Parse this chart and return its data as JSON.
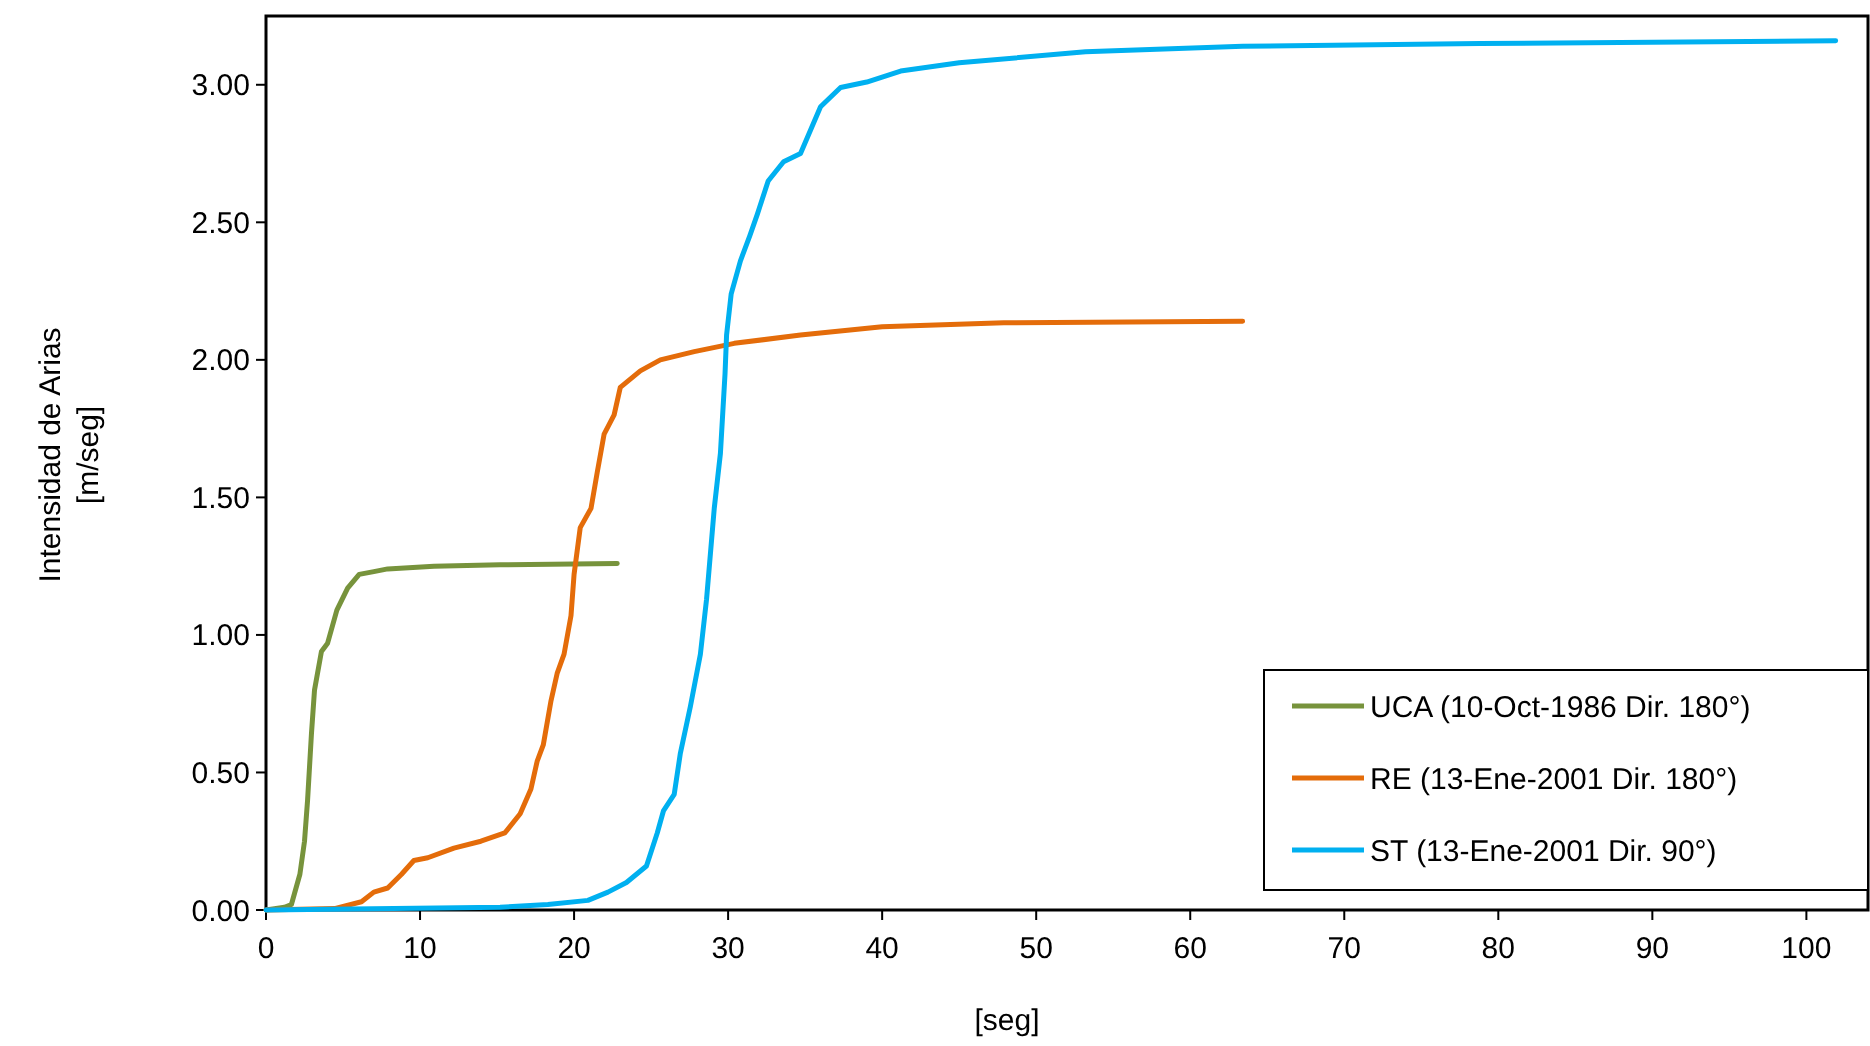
{
  "chart_data": {
    "type": "line",
    "xlabel": "[seg]",
    "ylabel": "Intensidad de Arias\n[m/seg]",
    "xlim": [
      0,
      104
    ],
    "xticks": [
      0,
      10,
      20,
      30,
      40,
      50,
      60,
      70,
      80,
      90,
      100
    ],
    "ylim": [
      0,
      3.25
    ],
    "yticks": [
      {
        "value": 0,
        "label": "0.00"
      },
      {
        "value": 0.5,
        "label": "0.50"
      },
      {
        "value": 1,
        "label": "1.00"
      },
      {
        "value": 1.5,
        "label": "1.50"
      },
      {
        "value": 2,
        "label": "2.00"
      },
      {
        "value": 2.5,
        "label": "2.50"
      },
      {
        "value": 3,
        "label": "3.00"
      }
    ],
    "grid": false,
    "legend": "bottom right",
    "marker": "none",
    "line_style": "solid",
    "series": [
      {
        "name": "UCA (10-Oct-1986 Dir. 180°)",
        "color": "#77933c",
        "x": [
          0,
          1.2,
          1.65,
          2.2,
          2.5,
          2.7,
          2.95,
          3.15,
          3.6,
          4.0,
          4.6,
          5.3,
          6.05,
          7.0,
          7.9,
          10.9,
          15.2,
          22.8
        ],
        "values": [
          0,
          0.01,
          0.02,
          0.13,
          0.25,
          0.4,
          0.64,
          0.8,
          0.94,
          0.97,
          1.09,
          1.17,
          1.22,
          1.23,
          1.24,
          1.25,
          1.255,
          1.26
        ]
      },
      {
        "name": "RE (13-Ene-2001 Dir. 180°)",
        "color": "#e46c0a",
        "x": [
          0,
          4.45,
          6.2,
          7.0,
          7.9,
          8.8,
          9.6,
          10.5,
          12.2,
          13.95,
          15.5,
          16.5,
          17.2,
          17.6,
          18.0,
          18.5,
          18.9,
          19.35,
          19.8,
          20.0,
          20.4,
          21.1,
          21.5,
          21.95,
          22.6,
          23.0,
          24.3,
          25.6,
          27.8,
          30.4,
          34.7,
          40,
          47.9,
          63.4
        ],
        "values": [
          0,
          0.005,
          0.03,
          0.065,
          0.08,
          0.13,
          0.18,
          0.19,
          0.225,
          0.25,
          0.28,
          0.35,
          0.44,
          0.54,
          0.6,
          0.76,
          0.86,
          0.93,
          1.07,
          1.22,
          1.39,
          1.46,
          1.59,
          1.73,
          1.8,
          1.9,
          1.96,
          2.0,
          2.03,
          2.06,
          2.09,
          2.12,
          2.135,
          2.14
        ]
      },
      {
        "name": "ST (13-Ene-2001 Dir. 90°)",
        "color": "#00b0f0",
        "x": [
          0,
          15.2,
          18.3,
          20.9,
          22.2,
          23.4,
          24.7,
          25.4,
          25.8,
          26.5,
          26.9,
          27.55,
          28.2,
          28.6,
          29.1,
          29.5,
          29.8,
          29.9,
          30.2,
          30.8,
          31.4,
          31.9,
          32.6,
          33.6,
          34.7,
          36,
          37.3,
          39,
          41.2,
          45,
          53.2,
          63.4,
          78.8,
          101.9
        ],
        "values": [
          0,
          0.01,
          0.02,
          0.035,
          0.065,
          0.1,
          0.16,
          0.28,
          0.36,
          0.42,
          0.57,
          0.74,
          0.93,
          1.13,
          1.46,
          1.66,
          1.95,
          2.09,
          2.24,
          2.36,
          2.45,
          2.53,
          2.65,
          2.72,
          2.75,
          2.92,
          2.99,
          3.01,
          3.05,
          3.08,
          3.12,
          3.14,
          3.15,
          3.16
        ]
      }
    ]
  }
}
